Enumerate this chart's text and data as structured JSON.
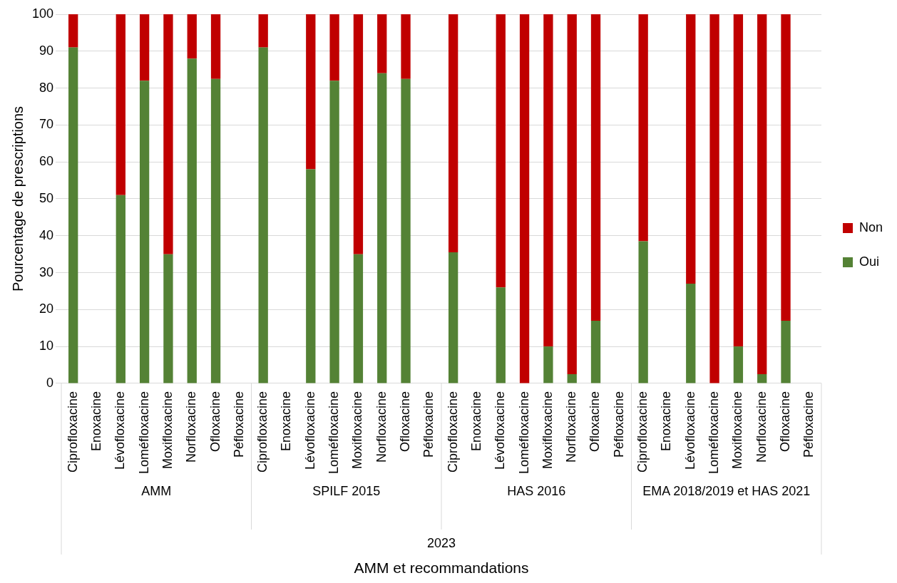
{
  "chart_data": {
    "type": "bar",
    "stacked": true,
    "ylabel": "Pourcentage de prescriptions",
    "categories": [
      "Ciprofloxacine",
      "Enoxacine",
      "Lévofloxacine",
      "Loméfloxacine",
      "Moxifloxacine",
      "Norfloxacine",
      "Ofloxacine",
      "Péfloxacine",
      "Ciprofloxacine",
      "Enoxacine",
      "Lévofloxacine",
      "Loméfloxacine",
      "Moxifloxacine",
      "Norfloxacine",
      "Ofloxacine",
      "Péfloxacine",
      "Ciprofloxacine",
      "Enoxacine",
      "Lévofloxacine",
      "Loméfloxacine",
      "Moxifloxacine",
      "Norfloxacine",
      "Ofloxacine",
      "Péfloxacine",
      "Ciprofloxacine",
      "Enoxacine",
      "Lévofloxacine",
      "Loméfloxacine",
      "Moxifloxacine",
      "Norfloxacine",
      "Ofloxacine",
      "Péfloxacine"
    ],
    "series": [
      {
        "name": "Oui",
        "color": "#548235",
        "values": [
          91,
          null,
          51,
          82,
          35,
          88,
          82.5,
          null,
          91,
          null,
          58,
          82,
          35,
          84,
          82.5,
          null,
          35.5,
          null,
          26,
          0,
          10,
          2.5,
          17,
          null,
          38.5,
          null,
          27,
          0,
          10,
          2.5,
          17,
          null
        ]
      },
      {
        "name": "Non",
        "color": "#c00000",
        "values": [
          9,
          null,
          49,
          18,
          65,
          12,
          17.5,
          null,
          9,
          null,
          42,
          18,
          65,
          16,
          17.5,
          null,
          64.5,
          null,
          74,
          100,
          90,
          97.5,
          83,
          null,
          61.5,
          null,
          73,
          100,
          90,
          97.5,
          83,
          null
        ]
      }
    ],
    "ylim": [
      0,
      100
    ],
    "yticks": [
      0,
      10,
      20,
      30,
      40,
      50,
      60,
      70,
      80,
      90,
      100
    ],
    "grid": "y",
    "legend": "right",
    "annotations": [
      "AMM",
      "SPILF 2015",
      "HAS 2016",
      "EMA 2018/2019 et HAS 2021",
      "2023",
      "AMM et recommandations"
    ]
  }
}
